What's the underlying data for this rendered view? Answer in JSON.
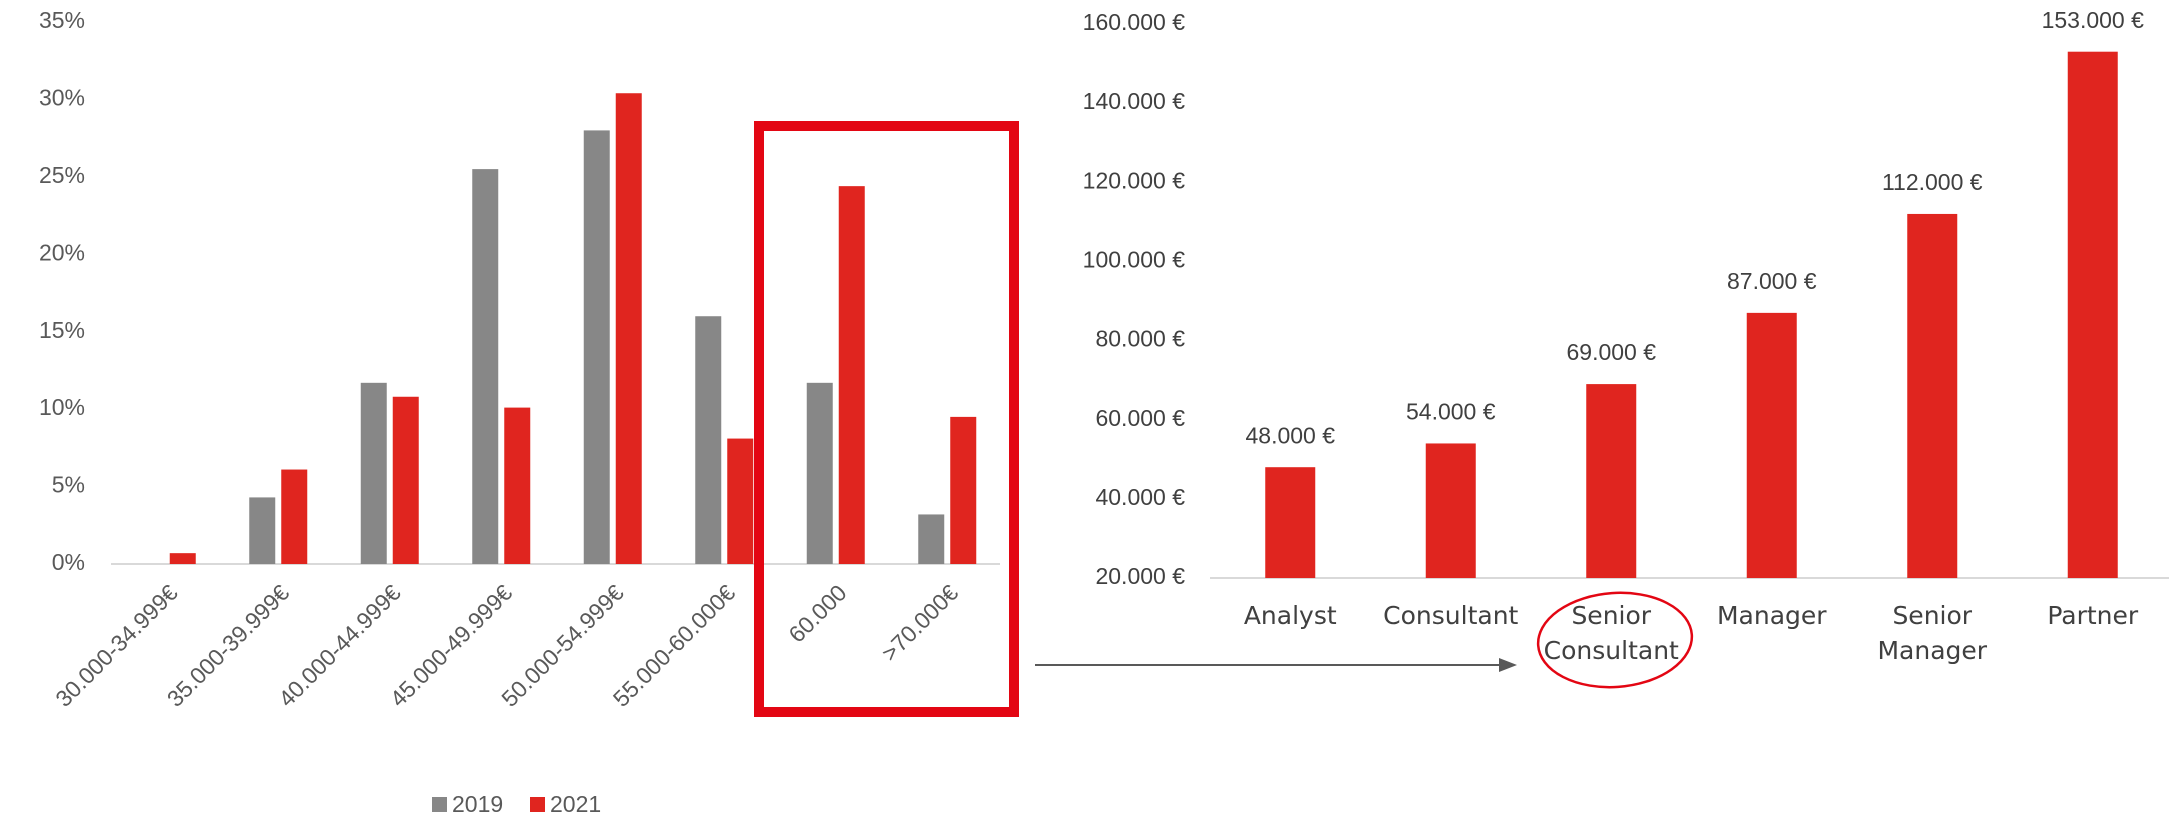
{
  "chart_data": [
    {
      "type": "bar",
      "categories": [
        "30.000-34.999€",
        "35.000-39.999€",
        "40.000-44.999€",
        "45.000-49.999€",
        "50.000-54.999€",
        "55.000-60.000€",
        "60.000",
        ">70.000€"
      ],
      "series": [
        {
          "name": "2019",
          "color": "#878787",
          "values": [
            0,
            4.3,
            11.7,
            25.5,
            28.0,
            16.0,
            11.7,
            3.2
          ]
        },
        {
          "name": "2021",
          "color": "#e0251f",
          "values": [
            0.7,
            6.1,
            10.8,
            10.1,
            30.4,
            8.1,
            24.4,
            9.5
          ]
        }
      ],
      "ylim": [
        0,
        35
      ],
      "yticks": [
        {
          "value": 0,
          "label": "0%"
        },
        {
          "value": 5,
          "label": "5%"
        },
        {
          "value": 10,
          "label": "10%"
        },
        {
          "value": 15,
          "label": "15%"
        },
        {
          "value": 20,
          "label": "20%"
        },
        {
          "value": 25,
          "label": "25%"
        },
        {
          "value": 30,
          "label": "30%"
        },
        {
          "value": 35,
          "label": "35%"
        }
      ],
      "legend": "bottom"
    },
    {
      "type": "bar",
      "categories": [
        "Analyst",
        "Consultant",
        "Senior Consultant",
        "Manager",
        "Senior Manager",
        "Partner"
      ],
      "values": [
        48000,
        54000,
        69000,
        87000,
        112000,
        153000
      ],
      "value_labels": [
        "48.000 €",
        "54.000 €",
        "69.000 €",
        "87.000 €",
        "112.000 €",
        "153.000 €"
      ],
      "color": "#e0251f",
      "ylim": [
        20000,
        160000
      ],
      "yticks": [
        {
          "value": 20000,
          "label": "20.000 €"
        },
        {
          "value": 40000,
          "label": "40.000 €"
        },
        {
          "value": 60000,
          "label": "60.000 €"
        },
        {
          "value": 80000,
          "label": "80.000 €"
        },
        {
          "value": 100000,
          "label": "100.000 €"
        },
        {
          "value": 120000,
          "label": "120.000 €"
        },
        {
          "value": 140000,
          "label": "140.000 €"
        },
        {
          "value": 160000,
          "label": "160.000 €"
        }
      ]
    }
  ]
}
